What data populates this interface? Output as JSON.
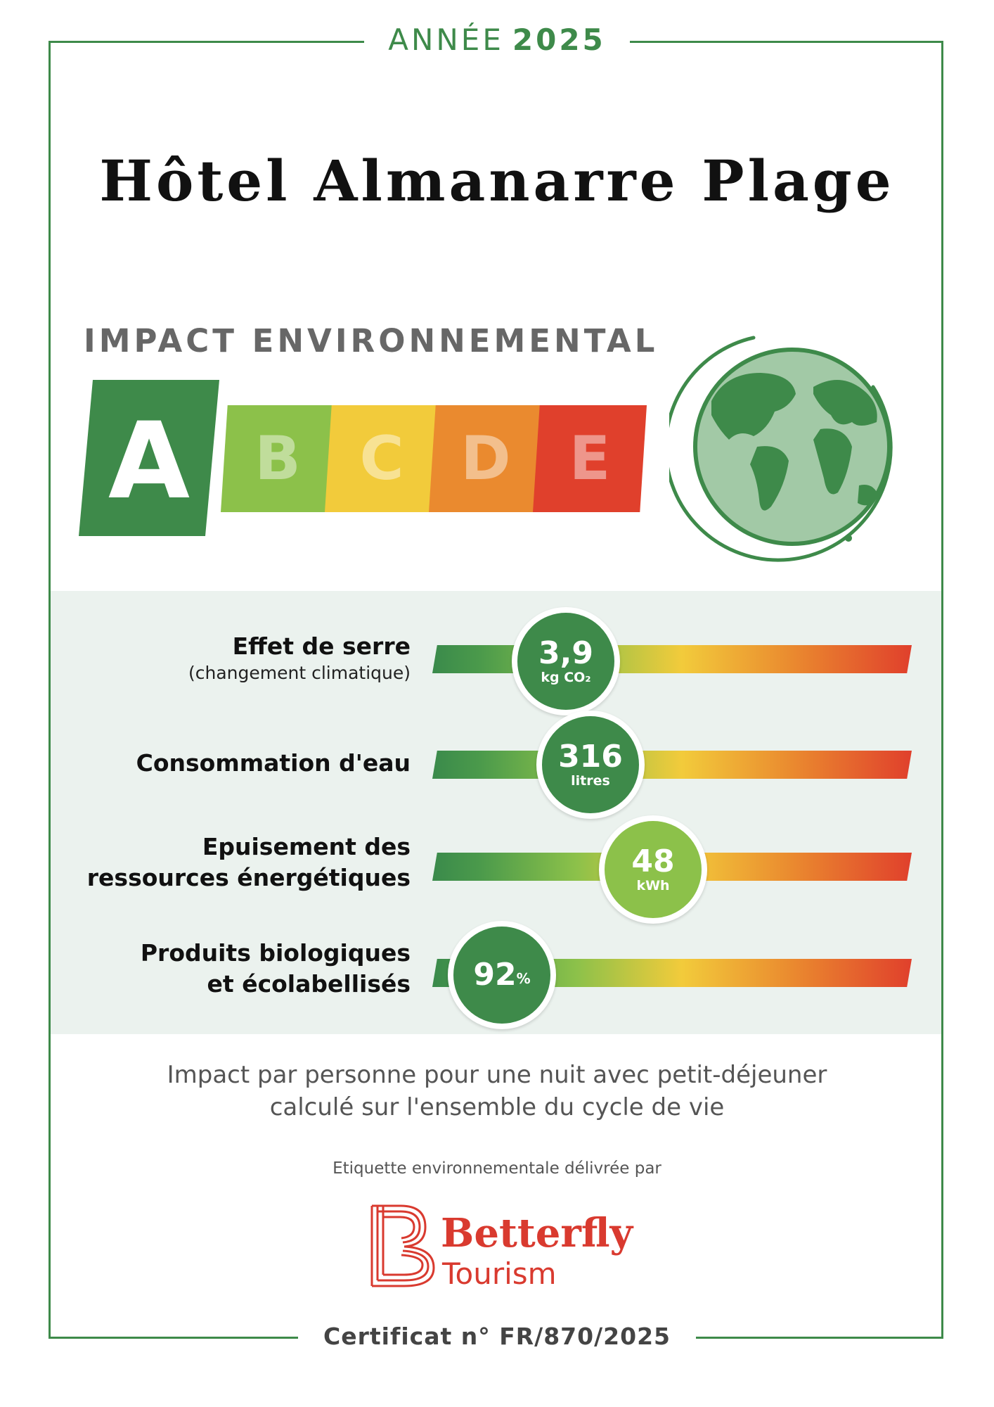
{
  "header": {
    "year_label": "ANNÉE",
    "year": "2025"
  },
  "hotel_name": "Hôtel Almanarre Plage",
  "impact": {
    "title": "IMPACT ENVIRONNEMENTAL",
    "grades": [
      "A",
      "B",
      "C",
      "D",
      "E"
    ],
    "selected": "A",
    "colors": {
      "A": "#3e8a4a",
      "B": "#8cc14a",
      "C": "#f2cb3b",
      "D": "#ea8a2f",
      "E": "#e0402c"
    }
  },
  "indicators": [
    {
      "label": "Effet de serre",
      "sublabel": "(changement climatique)",
      "value": "3,9",
      "unit": "kg CO₂",
      "level": 0.17,
      "color": "#3e8a4a"
    },
    {
      "label": "Consommation d'eau",
      "sublabel": "",
      "value": "316",
      "unit": "litres",
      "level": 0.22,
      "color": "#3e8a4a"
    },
    {
      "label_line1": "Epuisement des",
      "label_line2": "ressources énergétiques",
      "value": "48",
      "unit": "kWh",
      "level": 0.37,
      "color": "#8cc14a"
    },
    {
      "label_line1": "Produits biologiques",
      "label_line2": "et écolabellisés",
      "value": "92",
      "unit": "%",
      "level": 0.08,
      "color": "#3e8a4a"
    }
  ],
  "note": {
    "line1": "Impact par personne pour une nuit avec petit-déjeuner",
    "line2": "calculé sur l'ensemble du cycle de vie"
  },
  "delivered_by": "Etiquette environnementale délivrée par",
  "brand": {
    "name": "Betterfly",
    "sub": "Tourism",
    "color": "#d93a2f"
  },
  "certificate": "Certificat n° FR/870/2025"
}
